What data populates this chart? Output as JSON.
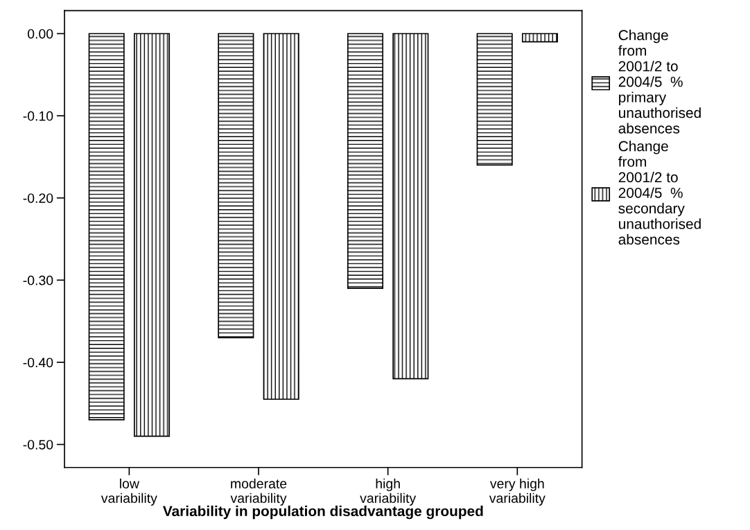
{
  "chart_data": {
    "type": "bar",
    "xlabel": "Variability in population disadvantage grouped",
    "categories": [
      "low variability",
      "moderate variability",
      "high variability",
      "very high variability"
    ],
    "series": [
      {
        "name": "Change from 2001/2 to 2004/5  % primary unauthorised absences",
        "color": "#000000",
        "values": [
          -0.47,
          -0.37,
          -0.31,
          -0.16
        ]
      },
      {
        "name": "Change from 2001/2 to 2004/5  % secondary unauthorised absences",
        "color": "#000000",
        "values": [
          -0.49,
          -0.445,
          -0.42,
          -0.01
        ]
      }
    ],
    "ylim": [
      -0.528,
      0.028
    ],
    "yticks": [
      {
        "value": 0,
        "label": "0.00"
      },
      {
        "value": -0.1,
        "label": "-0.10"
      },
      {
        "value": -0.2,
        "label": "-0.20"
      },
      {
        "value": -0.3,
        "label": "-0.30"
      },
      {
        "value": -0.4,
        "label": "-0.40"
      },
      {
        "value": -0.5,
        "label": "-0.50"
      }
    ],
    "grid": false,
    "legend": "right"
  }
}
